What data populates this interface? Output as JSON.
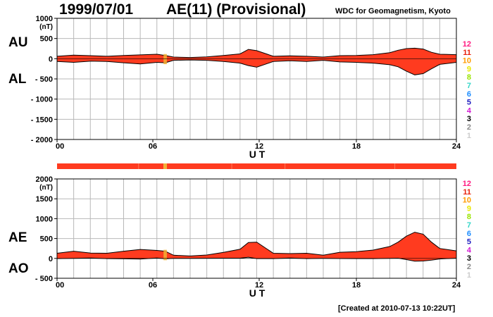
{
  "header": {
    "date": "1999/07/01",
    "title": "AE(11) (Provisional)",
    "organization": "WDC for Geomagnetism, Kyoto"
  },
  "footer": {
    "created": "[Created at 2010-07-13 10:22UT]"
  },
  "colors": {
    "envelope_fill": "#ff3b1f",
    "envelope_stroke": "#000000",
    "station_bar": "#ff3b1f",
    "station_gap": "#f2b134",
    "grid": "#b8b8b8"
  },
  "station_legend": [
    {
      "count": "12",
      "color": "#ff1a80"
    },
    {
      "count": "11",
      "color": "#e8200c"
    },
    {
      "count": "10",
      "color": "#ff9a00"
    },
    {
      "count": "9",
      "color": "#e8e800"
    },
    {
      "count": "8",
      "color": "#99e400"
    },
    {
      "count": "7",
      "color": "#33d6c8"
    },
    {
      "count": "6",
      "color": "#1a8cff"
    },
    {
      "count": "5",
      "color": "#2020c0"
    },
    {
      "count": "4",
      "color": "#d21ad2"
    },
    {
      "count": "3",
      "color": "#000000"
    },
    {
      "count": "2",
      "color": "#8c8c8c"
    },
    {
      "count": "1",
      "color": "#cccccc"
    }
  ],
  "chart_data": [
    {
      "type": "area",
      "labels": {
        "upper": "AU",
        "lower": "AL"
      },
      "xlabel": "U T",
      "ylabel_unit": "(nT)",
      "xlim": [
        0,
        24
      ],
      "ylim": [
        -2000,
        1000
      ],
      "xticks": [
        "00",
        "06",
        "12",
        "18",
        "24"
      ],
      "yticks": [
        "1000",
        "500",
        "0",
        "- 500",
        "- 1000",
        "- 1500",
        "- 2000"
      ],
      "ytick_values": [
        1000,
        500,
        0,
        -500,
        -1000,
        -1500,
        -2000
      ],
      "grid": true,
      "x": [
        0,
        1,
        2,
        3,
        4,
        5,
        6,
        6.5,
        7,
        8,
        9,
        10,
        11,
        11.5,
        12,
        13,
        14,
        15,
        16,
        17,
        18,
        19,
        20,
        20.5,
        21,
        21.5,
        22,
        22.5,
        23,
        24
      ],
      "series": [
        {
          "name": "AU",
          "values": [
            60,
            90,
            75,
            60,
            80,
            95,
            110,
            80,
            40,
            30,
            45,
            80,
            120,
            230,
            200,
            60,
            70,
            60,
            40,
            75,
            80,
            100,
            150,
            210,
            250,
            260,
            240,
            160,
            110,
            100
          ]
        },
        {
          "name": "AL",
          "values": [
            -70,
            -90,
            -60,
            -70,
            -100,
            -130,
            -90,
            -100,
            -40,
            -30,
            -40,
            -70,
            -110,
            -170,
            -210,
            -70,
            -50,
            -70,
            -40,
            -80,
            -90,
            -110,
            -150,
            -200,
            -310,
            -400,
            -370,
            -250,
            -140,
            -90
          ]
        }
      ]
    },
    {
      "type": "area",
      "labels": {
        "upper": "AE",
        "lower": "AO"
      },
      "xlabel": "U T",
      "ylabel_unit": "(nT)",
      "xlim": [
        0,
        24
      ],
      "ylim": [
        -500,
        2000
      ],
      "xticks": [
        "00",
        "06",
        "12",
        "18",
        "24"
      ],
      "yticks": [
        "2000",
        "1500",
        "1000",
        "500",
        "0",
        "- 500"
      ],
      "ytick_values": [
        2000,
        1500,
        1000,
        500,
        0,
        -500
      ],
      "grid": true,
      "x": [
        0,
        1,
        2,
        3,
        4,
        5,
        6,
        6.5,
        7,
        8,
        9,
        10,
        11,
        11.5,
        12,
        13,
        14,
        15,
        16,
        17,
        18,
        19,
        20,
        20.5,
        21,
        21.5,
        22,
        22.5,
        23,
        24
      ],
      "series": [
        {
          "name": "AE",
          "values": [
            130,
            180,
            135,
            130,
            180,
            225,
            200,
            180,
            80,
            60,
            85,
            150,
            230,
            400,
            410,
            130,
            120,
            130,
            80,
            155,
            170,
            210,
            300,
            410,
            560,
            660,
            610,
            410,
            250,
            190
          ]
        },
        {
          "name": "AO",
          "values": [
            -5,
            0,
            8,
            -5,
            -10,
            -18,
            10,
            -10,
            0,
            0,
            3,
            5,
            5,
            30,
            -5,
            -5,
            10,
            -5,
            0,
            -3,
            -5,
            -5,
            0,
            5,
            -30,
            -70,
            -65,
            -45,
            -15,
            5
          ]
        }
      ],
      "station_bar": [
        {
          "from": 0,
          "to": 6.4,
          "stations": "11"
        },
        {
          "from": 6.4,
          "to": 6.6,
          "stations": "10"
        },
        {
          "from": 6.6,
          "to": 24,
          "stations": "11"
        }
      ]
    }
  ]
}
